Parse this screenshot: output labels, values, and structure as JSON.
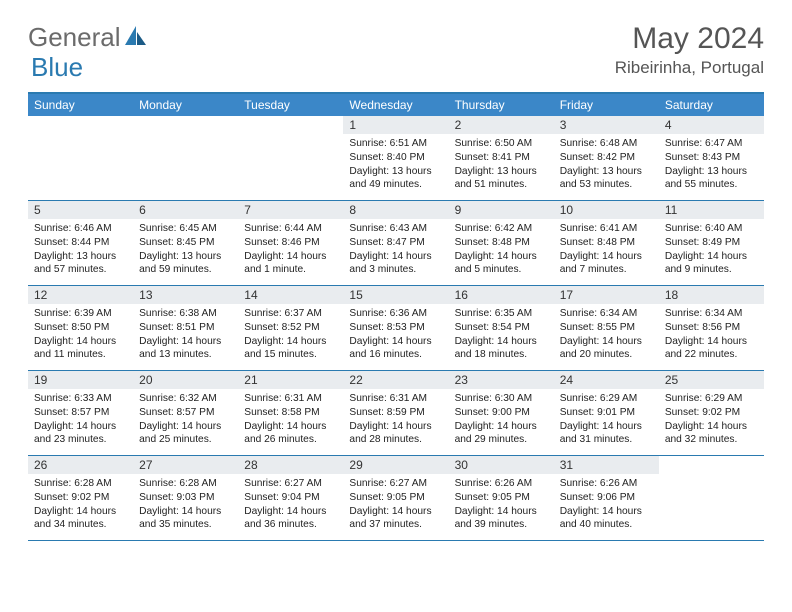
{
  "brand": {
    "text1": "General",
    "text2": "Blue"
  },
  "title": "May 2024",
  "location": "Ribeirinha, Portugal",
  "dayNames": [
    "Sunday",
    "Monday",
    "Tuesday",
    "Wednesday",
    "Thursday",
    "Friday",
    "Saturday"
  ],
  "colors": {
    "headerBar": "#3b87c8",
    "borderTop": "#2a7ab0",
    "daynumBg": "#e9ecef"
  },
  "weeks": [
    [
      {
        "empty": true
      },
      {
        "empty": true
      },
      {
        "empty": true
      },
      {
        "day": "1",
        "sunrise": "Sunrise: 6:51 AM",
        "sunset": "Sunset: 8:40 PM",
        "daylight": "Daylight: 13 hours and 49 minutes."
      },
      {
        "day": "2",
        "sunrise": "Sunrise: 6:50 AM",
        "sunset": "Sunset: 8:41 PM",
        "daylight": "Daylight: 13 hours and 51 minutes."
      },
      {
        "day": "3",
        "sunrise": "Sunrise: 6:48 AM",
        "sunset": "Sunset: 8:42 PM",
        "daylight": "Daylight: 13 hours and 53 minutes."
      },
      {
        "day": "4",
        "sunrise": "Sunrise: 6:47 AM",
        "sunset": "Sunset: 8:43 PM",
        "daylight": "Daylight: 13 hours and 55 minutes."
      }
    ],
    [
      {
        "day": "5",
        "sunrise": "Sunrise: 6:46 AM",
        "sunset": "Sunset: 8:44 PM",
        "daylight": "Daylight: 13 hours and 57 minutes."
      },
      {
        "day": "6",
        "sunrise": "Sunrise: 6:45 AM",
        "sunset": "Sunset: 8:45 PM",
        "daylight": "Daylight: 13 hours and 59 minutes."
      },
      {
        "day": "7",
        "sunrise": "Sunrise: 6:44 AM",
        "sunset": "Sunset: 8:46 PM",
        "daylight": "Daylight: 14 hours and 1 minute."
      },
      {
        "day": "8",
        "sunrise": "Sunrise: 6:43 AM",
        "sunset": "Sunset: 8:47 PM",
        "daylight": "Daylight: 14 hours and 3 minutes."
      },
      {
        "day": "9",
        "sunrise": "Sunrise: 6:42 AM",
        "sunset": "Sunset: 8:48 PM",
        "daylight": "Daylight: 14 hours and 5 minutes."
      },
      {
        "day": "10",
        "sunrise": "Sunrise: 6:41 AM",
        "sunset": "Sunset: 8:48 PM",
        "daylight": "Daylight: 14 hours and 7 minutes."
      },
      {
        "day": "11",
        "sunrise": "Sunrise: 6:40 AM",
        "sunset": "Sunset: 8:49 PM",
        "daylight": "Daylight: 14 hours and 9 minutes."
      }
    ],
    [
      {
        "day": "12",
        "sunrise": "Sunrise: 6:39 AM",
        "sunset": "Sunset: 8:50 PM",
        "daylight": "Daylight: 14 hours and 11 minutes."
      },
      {
        "day": "13",
        "sunrise": "Sunrise: 6:38 AM",
        "sunset": "Sunset: 8:51 PM",
        "daylight": "Daylight: 14 hours and 13 minutes."
      },
      {
        "day": "14",
        "sunrise": "Sunrise: 6:37 AM",
        "sunset": "Sunset: 8:52 PM",
        "daylight": "Daylight: 14 hours and 15 minutes."
      },
      {
        "day": "15",
        "sunrise": "Sunrise: 6:36 AM",
        "sunset": "Sunset: 8:53 PM",
        "daylight": "Daylight: 14 hours and 16 minutes."
      },
      {
        "day": "16",
        "sunrise": "Sunrise: 6:35 AM",
        "sunset": "Sunset: 8:54 PM",
        "daylight": "Daylight: 14 hours and 18 minutes."
      },
      {
        "day": "17",
        "sunrise": "Sunrise: 6:34 AM",
        "sunset": "Sunset: 8:55 PM",
        "daylight": "Daylight: 14 hours and 20 minutes."
      },
      {
        "day": "18",
        "sunrise": "Sunrise: 6:34 AM",
        "sunset": "Sunset: 8:56 PM",
        "daylight": "Daylight: 14 hours and 22 minutes."
      }
    ],
    [
      {
        "day": "19",
        "sunrise": "Sunrise: 6:33 AM",
        "sunset": "Sunset: 8:57 PM",
        "daylight": "Daylight: 14 hours and 23 minutes."
      },
      {
        "day": "20",
        "sunrise": "Sunrise: 6:32 AM",
        "sunset": "Sunset: 8:57 PM",
        "daylight": "Daylight: 14 hours and 25 minutes."
      },
      {
        "day": "21",
        "sunrise": "Sunrise: 6:31 AM",
        "sunset": "Sunset: 8:58 PM",
        "daylight": "Daylight: 14 hours and 26 minutes."
      },
      {
        "day": "22",
        "sunrise": "Sunrise: 6:31 AM",
        "sunset": "Sunset: 8:59 PM",
        "daylight": "Daylight: 14 hours and 28 minutes."
      },
      {
        "day": "23",
        "sunrise": "Sunrise: 6:30 AM",
        "sunset": "Sunset: 9:00 PM",
        "daylight": "Daylight: 14 hours and 29 minutes."
      },
      {
        "day": "24",
        "sunrise": "Sunrise: 6:29 AM",
        "sunset": "Sunset: 9:01 PM",
        "daylight": "Daylight: 14 hours and 31 minutes."
      },
      {
        "day": "25",
        "sunrise": "Sunrise: 6:29 AM",
        "sunset": "Sunset: 9:02 PM",
        "daylight": "Daylight: 14 hours and 32 minutes."
      }
    ],
    [
      {
        "day": "26",
        "sunrise": "Sunrise: 6:28 AM",
        "sunset": "Sunset: 9:02 PM",
        "daylight": "Daylight: 14 hours and 34 minutes."
      },
      {
        "day": "27",
        "sunrise": "Sunrise: 6:28 AM",
        "sunset": "Sunset: 9:03 PM",
        "daylight": "Daylight: 14 hours and 35 minutes."
      },
      {
        "day": "28",
        "sunrise": "Sunrise: 6:27 AM",
        "sunset": "Sunset: 9:04 PM",
        "daylight": "Daylight: 14 hours and 36 minutes."
      },
      {
        "day": "29",
        "sunrise": "Sunrise: 6:27 AM",
        "sunset": "Sunset: 9:05 PM",
        "daylight": "Daylight: 14 hours and 37 minutes."
      },
      {
        "day": "30",
        "sunrise": "Sunrise: 6:26 AM",
        "sunset": "Sunset: 9:05 PM",
        "daylight": "Daylight: 14 hours and 39 minutes."
      },
      {
        "day": "31",
        "sunrise": "Sunrise: 6:26 AM",
        "sunset": "Sunset: 9:06 PM",
        "daylight": "Daylight: 14 hours and 40 minutes."
      },
      {
        "empty": true
      }
    ]
  ]
}
